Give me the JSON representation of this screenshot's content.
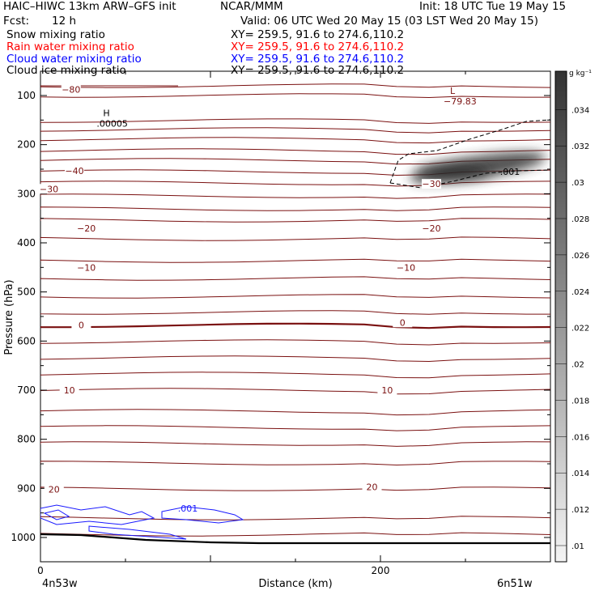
{
  "header": {
    "title": "HAIC–HIWC 13km ARW–GFS init",
    "org": "NCAR/MMM",
    "init": "Init: 18 UTC Tue 19 May 15",
    "fcst_label": "Fcst:",
    "fcst_value": "12 h",
    "valid": "Valid: 06 UTC Wed 20 May 15 (03 LST Wed 20 May 15)",
    "fields": [
      {
        "name": "Snow mixing ratio",
        "xy": "XY= 259.5, 91.6 to 274.6,110.2",
        "color": "#000000"
      },
      {
        "name": "Rain water mixing ratio",
        "xy": "XY= 259.5, 91.6 to 274.6,110.2",
        "color": "#ff0000"
      },
      {
        "name": "Cloud water mixing ratio",
        "xy": "XY= 259.5, 91.6 to 274.6,110.2",
        "color": "#0000ff"
      },
      {
        "name": "Cloud ice mixing ratio",
        "xy": "XY= 259.5, 91.6 to 274.6,110.2",
        "color": "#000000"
      }
    ]
  },
  "chart_data": {
    "type": "contour",
    "ylabel": "Pressure (hPa)",
    "xlabel": "Distance (km)",
    "x_start_label": "4n53w",
    "x_end_label": "6n51w",
    "xlim": [
      0,
      300
    ],
    "ylim": [
      1050,
      50
    ],
    "x_ticks": [
      0,
      200
    ],
    "y_ticks": [
      100,
      200,
      300,
      400,
      500,
      600,
      700,
      800,
      900,
      1000
    ],
    "temperature_contour_labels": [
      {
        "text": "−80",
        "x": 18,
        "p": 88
      },
      {
        "text": "−40",
        "x": 20,
        "p": 253
      },
      {
        "text": "−30",
        "x": 5,
        "p": 290
      },
      {
        "text": "−30",
        "x": 230,
        "p": 280
      },
      {
        "text": "−20",
        "x": 27,
        "p": 370
      },
      {
        "text": "−20",
        "x": 230,
        "p": 370
      },
      {
        "text": "−10",
        "x": 27,
        "p": 450
      },
      {
        "text": "−10",
        "x": 215,
        "p": 450
      },
      {
        "text": "0",
        "x": 24,
        "p": 567
      },
      {
        "text": "0",
        "x": 213,
        "p": 562
      },
      {
        "text": "10",
        "x": 17,
        "p": 700
      },
      {
        "text": "10",
        "x": 204,
        "p": 700
      },
      {
        "text": "20",
        "x": 8,
        "p": 902
      },
      {
        "text": "20",
        "x": 195,
        "p": 897
      }
    ],
    "snow_contour_label": ".001",
    "cloud_water_label": ".001",
    "high_marker": {
      "symbol": "H",
      "value": ".00005",
      "x": 34,
      "p": 162
    },
    "low_marker": {
      "symbol": "L",
      "value": "−79.83",
      "x": 240,
      "p": 108
    },
    "colorbar": {
      "unit": "g kg⁻¹",
      "ticks": [
        ".01",
        ".012",
        ".014",
        ".016",
        ".018",
        ".02",
        ".022",
        ".024",
        ".026",
        ".028",
        ".03",
        ".032",
        ".034"
      ]
    }
  }
}
